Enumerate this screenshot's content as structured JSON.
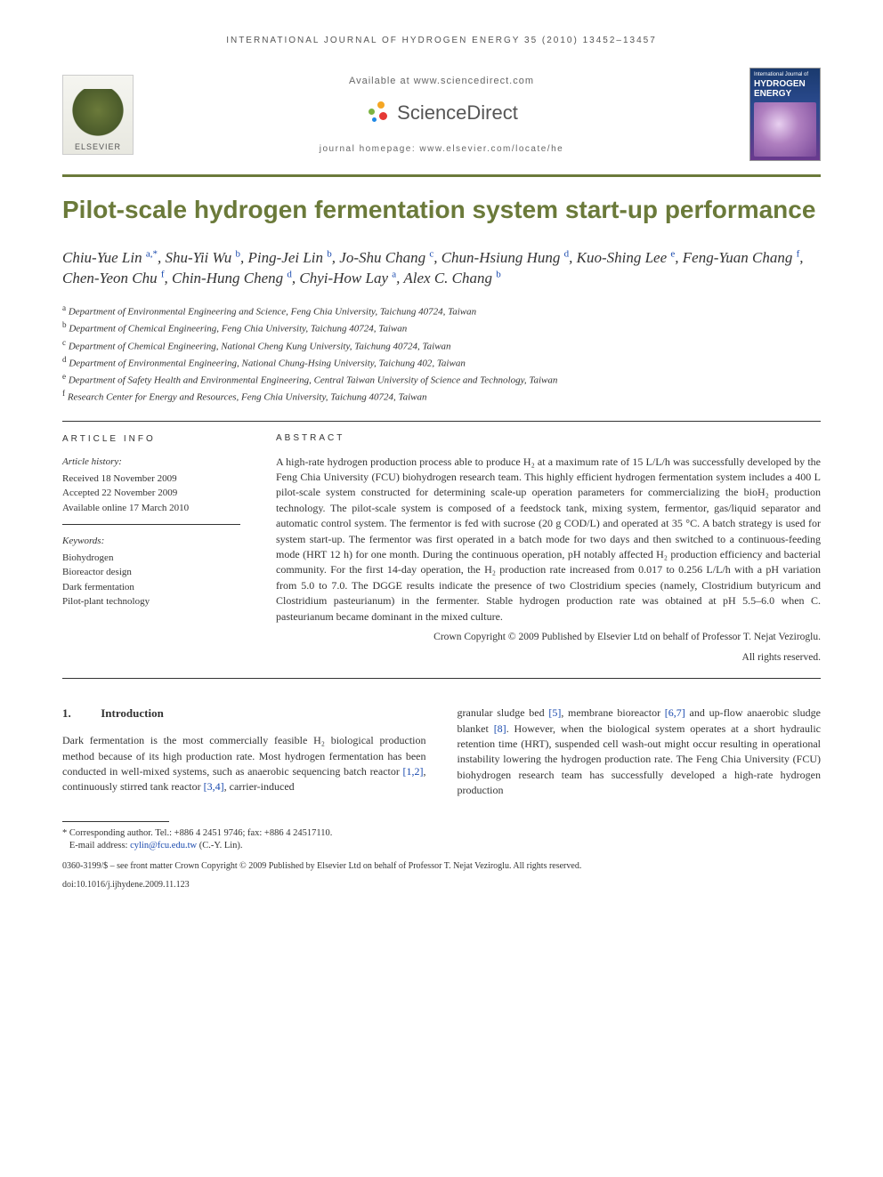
{
  "running_head": "INTERNATIONAL JOURNAL OF HYDROGEN ENERGY 35 (2010) 13452–13457",
  "header": {
    "elsevier": "ELSEVIER",
    "available": "Available at www.sciencedirect.com",
    "scidirect": "ScienceDirect",
    "homepage": "journal homepage: www.elsevier.com/locate/he",
    "cover_super": "International Journal of",
    "cover_title1": "HYDROGEN",
    "cover_title2": "ENERGY"
  },
  "title": "Pilot-scale hydrogen fermentation system start-up performance",
  "authors_html": "Chiu-Yue Lin <sup>a,*</sup>, Shu-Yii Wu <sup>b</sup>, Ping-Jei Lin <sup>b</sup>, Jo-Shu Chang <sup>c</sup>, Chun-Hsiung Hung <sup>d</sup>, Kuo-Shing Lee <sup>e</sup>, Feng-Yuan Chang <sup>f</sup>, Chen-Yeon Chu <sup>f</sup>, Chin-Hung Cheng <sup>d</sup>, Chyi-How Lay <sup>a</sup>, Alex C. Chang <sup>b</sup>",
  "affiliations": [
    {
      "sup": "a",
      "text": "Department of Environmental Engineering and Science, Feng Chia University, Taichung 40724, Taiwan"
    },
    {
      "sup": "b",
      "text": "Department of Chemical Engineering, Feng Chia University, Taichung 40724, Taiwan"
    },
    {
      "sup": "c",
      "text": "Department of Chemical Engineering, National Cheng Kung University, Taichung 40724, Taiwan"
    },
    {
      "sup": "d",
      "text": "Department of Environmental Engineering, National Chung-Hsing University, Taichung 402, Taiwan"
    },
    {
      "sup": "e",
      "text": "Department of Safety Health and Environmental Engineering, Central Taiwan University of Science and Technology, Taiwan"
    },
    {
      "sup": "f",
      "text": "Research Center for Energy and Resources, Feng Chia University, Taichung 40724, Taiwan"
    }
  ],
  "info": {
    "head": "ARTICLE INFO",
    "history_label": "Article history:",
    "received": "Received 18 November 2009",
    "accepted": "Accepted 22 November 2009",
    "online": "Available online 17 March 2010",
    "keywords_label": "Keywords:",
    "keywords": [
      "Biohydrogen",
      "Bioreactor design",
      "Dark fermentation",
      "Pilot-plant technology"
    ]
  },
  "abstract": {
    "head": "ABSTRACT",
    "text": "A high-rate hydrogen production process able to produce H₂ at a maximum rate of 15 L/L/h was successfully developed by the Feng Chia University (FCU) biohydrogen research team. This highly efficient hydrogen fermentation system includes a 400 L pilot-scale system constructed for determining scale-up operation parameters for commercializing the bioH₂ production technology. The pilot-scale system is composed of a feedstock tank, mixing system, fermentor, gas/liquid separator and automatic control system. The fermentor is fed with sucrose (20 g COD/L) and operated at 35 °C. A batch strategy is used for system start-up. The fermentor was first operated in a batch mode for two days and then switched to a continuous-feeding mode (HRT 12 h) for one month. During the continuous operation, pH notably affected H₂ production efficiency and bacterial community. For the first 14-day operation, the H₂ production rate increased from 0.017 to 0.256 L/L/h with a pH variation from 5.0 to 7.0. The DGGE results indicate the presence of two Clostridium species (namely, Clostridium butyricum and Clostridium pasteurianum) in the fermenter. Stable hydrogen production rate was obtained at pH 5.5–6.0 when C. pasteurianum became dominant in the mixed culture.",
    "copyright1": "Crown Copyright © 2009 Published by Elsevier Ltd on behalf of Professor T. Nejat Veziroglu.",
    "copyright2": "All rights reserved."
  },
  "section1": {
    "num": "1.",
    "title": "Introduction",
    "col1": "Dark fermentation is the most commercially feasible H₂ biological production method because of its high production rate. Most hydrogen fermentation has been conducted in well-mixed systems, such as anaerobic sequencing batch reactor [1,2], continuously stirred tank reactor [3,4], carrier-induced",
    "col2": "granular sludge bed [5], membrane bioreactor [6,7] and up-flow anaerobic sludge blanket [8]. However, when the biological system operates at a short hydraulic retention time (HRT), suspended cell wash-out might occur resulting in operational instability lowering the hydrogen production rate. The Feng Chia University (FCU) biohydrogen research team has successfully developed a high-rate hydrogen production"
  },
  "footnote": {
    "corr": "* Corresponding author. Tel.: +886 4 2451 9746; fax: +886 4 24517110.",
    "email_label": "E-mail address: ",
    "email": "cylin@fcu.edu.tw",
    "email_who": " (C.-Y. Lin).",
    "copyright": "0360-3199/$ – see front matter Crown Copyright © 2009 Published by Elsevier Ltd on behalf of Professor T. Nejat Veziroglu. All rights reserved.",
    "doi": "doi:10.1016/j.ijhydene.2009.11.123"
  },
  "colors": {
    "olive": "#6b7a3a",
    "link": "#1a4aae"
  }
}
